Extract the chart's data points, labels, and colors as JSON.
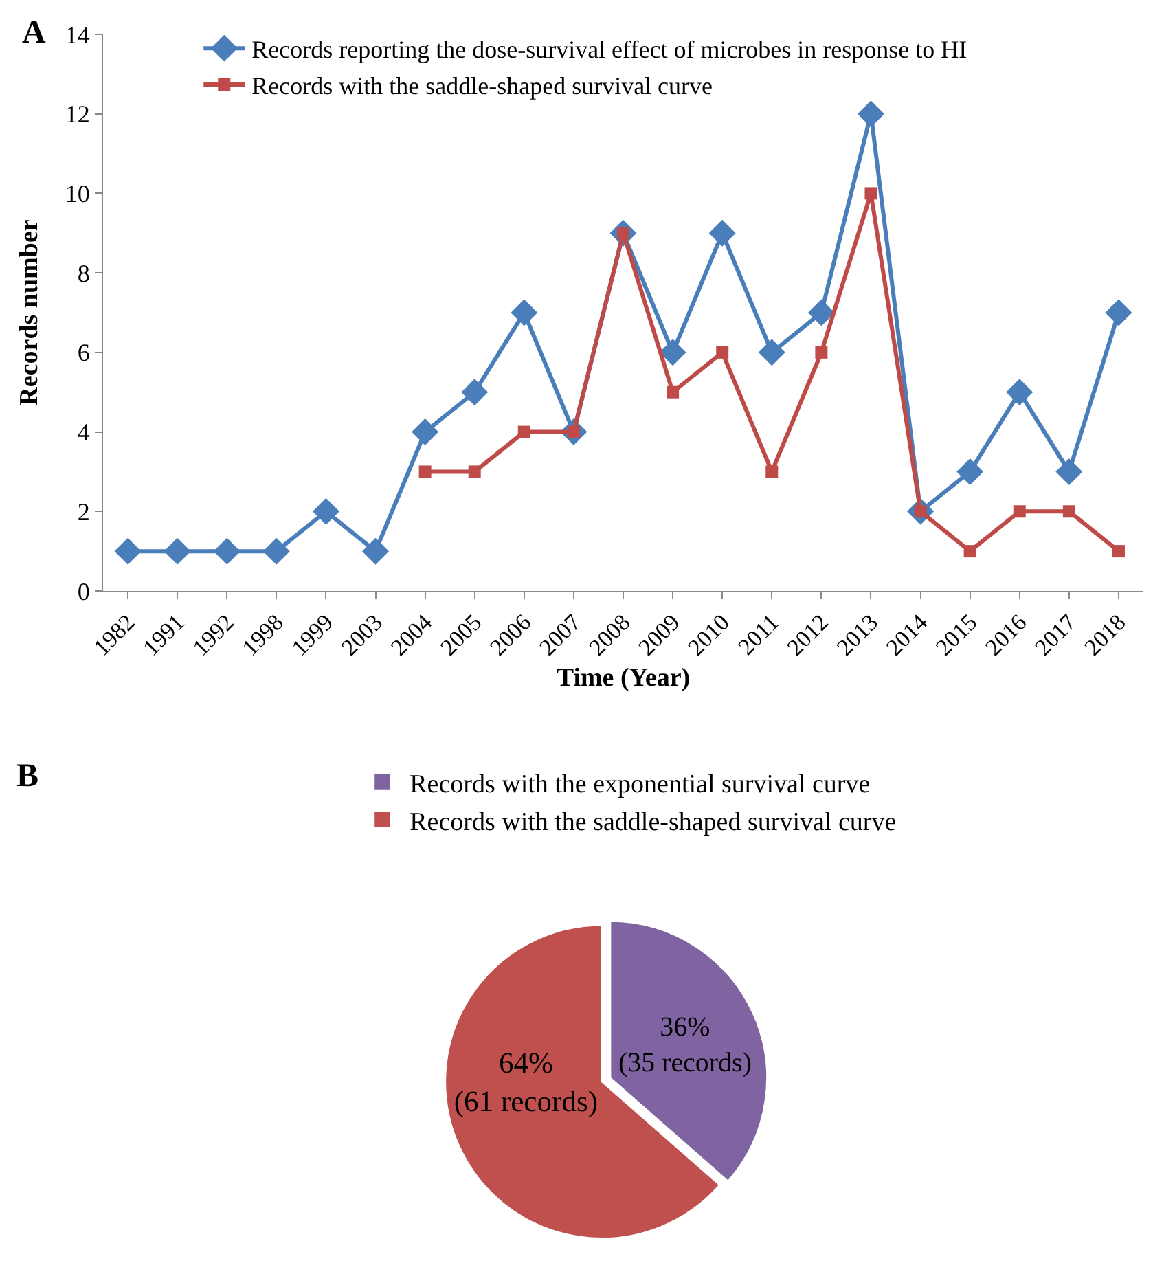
{
  "chart_data": [
    {
      "type": "line",
      "xlabel": "Time (Year)",
      "ylabel": "Records number",
      "annotations": [
        "A"
      ],
      "categories": [
        "1982",
        "1991",
        "1992",
        "1998",
        "1999",
        "2003",
        "2004",
        "2005",
        "2006",
        "2007",
        "2008",
        "2009",
        "2010",
        "2011",
        "2012",
        "2013",
        "2014",
        "2015",
        "2016",
        "2017",
        "2018"
      ],
      "series": [
        {
          "name": "Records reporting the dose-survival effect of microbes in response to HI",
          "color": "#4a7ebb",
          "marker": "diamond",
          "values": [
            1,
            1,
            1,
            1,
            2,
            1,
            4,
            5,
            7,
            4,
            9,
            6,
            9,
            6,
            7,
            12,
            2,
            3,
            5,
            3,
            7
          ]
        },
        {
          "name": "Records with the saddle-shaped survival curve",
          "color": "#be4b48",
          "marker": "square",
          "values": [
            null,
            null,
            null,
            null,
            null,
            null,
            3,
            3,
            4,
            4,
            9,
            5,
            6,
            3,
            6,
            10,
            2,
            1,
            2,
            2,
            1
          ]
        }
      ],
      "ylim": [
        0,
        14
      ],
      "yticks": [
        0,
        2,
        4,
        6,
        8,
        10,
        12,
        14
      ],
      "grid": false,
      "legend": "top left",
      "line_style": "solid"
    },
    {
      "type": "pie",
      "annotations": [
        "B"
      ],
      "categories": [
        "Records with the exponential survival curve",
        "Records with the saddle-shaped survival curve"
      ],
      "values": [
        35,
        61
      ],
      "colors": [
        "#8064a2",
        "#c0504d"
      ],
      "value_labels": [
        "36%\n(35 records)",
        "64%\n(61 records)"
      ],
      "legend": "top"
    }
  ]
}
